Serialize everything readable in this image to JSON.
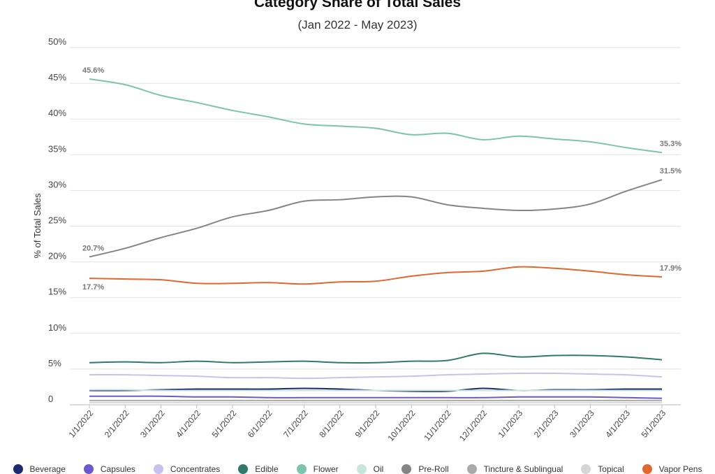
{
  "chart_data": {
    "type": "line",
    "title": "Category Share of Total Sales",
    "subtitle": "(Jan 2022 - May 2023)",
    "ylabel": "% of Total Sales",
    "xlabel": "",
    "ylim": [
      0,
      50
    ],
    "yticks": [
      "0",
      "5%",
      "10%",
      "15%",
      "20%",
      "25%",
      "30%",
      "35%",
      "40%",
      "45%",
      "50%"
    ],
    "grid": true,
    "legend_position": "bottom",
    "categories": [
      "1/1/2022",
      "2/1/2022",
      "3/1/2022",
      "4/1/2022",
      "5/1/2022",
      "6/1/2022",
      "7/1/2022",
      "8/1/2022",
      "9/1/2022",
      "10/1/2022",
      "11/1/2022",
      "12/1/2022",
      "1/1/2023",
      "2/1/2023",
      "3/1/2023",
      "4/1/2023",
      "5/1/2023"
    ],
    "series": [
      {
        "name": "Beverage",
        "color": "#1c2b6b",
        "values": [
          2.0,
          2.0,
          2.1,
          2.2,
          2.2,
          2.2,
          2.3,
          2.2,
          2.0,
          1.9,
          1.9,
          2.3,
          2.0,
          2.1,
          2.1,
          2.2,
          2.2
        ]
      },
      {
        "name": "Capsules",
        "color": "#6a5acd",
        "values": [
          1.2,
          1.2,
          1.2,
          1.1,
          1.1,
          1.0,
          1.0,
          1.0,
          1.0,
          1.0,
          1.0,
          1.0,
          1.1,
          1.1,
          1.1,
          1.0,
          0.9
        ]
      },
      {
        "name": "Concentrates",
        "color": "#c9c0f0",
        "values": [
          4.2,
          4.2,
          4.1,
          4.0,
          3.8,
          3.8,
          3.7,
          3.8,
          3.9,
          4.0,
          4.2,
          4.3,
          4.4,
          4.4,
          4.3,
          4.2,
          3.9
        ]
      },
      {
        "name": "Edible",
        "color": "#2f7a6a",
        "values": [
          5.9,
          6.0,
          5.9,
          6.1,
          5.9,
          6.0,
          6.1,
          5.9,
          5.9,
          6.1,
          6.2,
          7.2,
          6.7,
          6.9,
          6.9,
          6.7,
          6.3
        ]
      },
      {
        "name": "Flower",
        "color": "#7cc4ad",
        "values": [
          45.6,
          44.8,
          43.3,
          42.3,
          41.2,
          40.3,
          39.3,
          39.0,
          38.7,
          37.8,
          38.0,
          37.1,
          37.6,
          37.2,
          36.8,
          36.0,
          35.3
        ]
      },
      {
        "name": "Oil",
        "color": "#c6e6dc",
        "values": [
          2.1,
          2.1,
          2.0,
          2.0,
          2.0,
          2.0,
          2.0,
          2.0,
          2.0,
          2.0,
          2.0,
          2.0,
          2.0,
          2.0,
          2.0,
          2.0,
          2.0
        ]
      },
      {
        "name": "Pre-Roll",
        "color": "#858585",
        "values": [
          20.7,
          21.9,
          23.4,
          24.7,
          26.3,
          27.2,
          28.5,
          28.7,
          29.1,
          29.1,
          28.0,
          27.5,
          27.2,
          27.4,
          28.1,
          29.9,
          31.5
        ]
      },
      {
        "name": "Tincture & Sublingual",
        "color": "#aaaaaa",
        "values": [
          0.6,
          0.6,
          0.6,
          0.6,
          0.6,
          0.6,
          0.6,
          0.6,
          0.6,
          0.6,
          0.6,
          0.6,
          0.6,
          0.6,
          0.6,
          0.6,
          0.6
        ]
      },
      {
        "name": "Topical",
        "color": "#d6d6d6",
        "values": [
          0.3,
          0.3,
          0.3,
          0.3,
          0.3,
          0.3,
          0.3,
          0.3,
          0.3,
          0.3,
          0.3,
          0.3,
          0.3,
          0.3,
          0.3,
          0.3,
          0.3
        ]
      },
      {
        "name": "Vapor Pens",
        "color": "#e0672e",
        "values": [
          17.7,
          17.6,
          17.5,
          17.0,
          17.0,
          17.1,
          16.9,
          17.2,
          17.3,
          18.0,
          18.5,
          18.7,
          19.3,
          19.1,
          18.7,
          18.2,
          17.9
        ]
      }
    ],
    "annotations": [
      {
        "series": "Flower",
        "index": 0,
        "text": "45.6%"
      },
      {
        "series": "Flower",
        "index": 16,
        "text": "35.3%"
      },
      {
        "series": "Pre-Roll",
        "index": 0,
        "text": "20.7%"
      },
      {
        "series": "Pre-Roll",
        "index": 16,
        "text": "31.5%"
      },
      {
        "series": "Vapor Pens",
        "index": 0,
        "text": "17.7%"
      },
      {
        "series": "Vapor Pens",
        "index": 16,
        "text": "17.9%"
      }
    ]
  }
}
